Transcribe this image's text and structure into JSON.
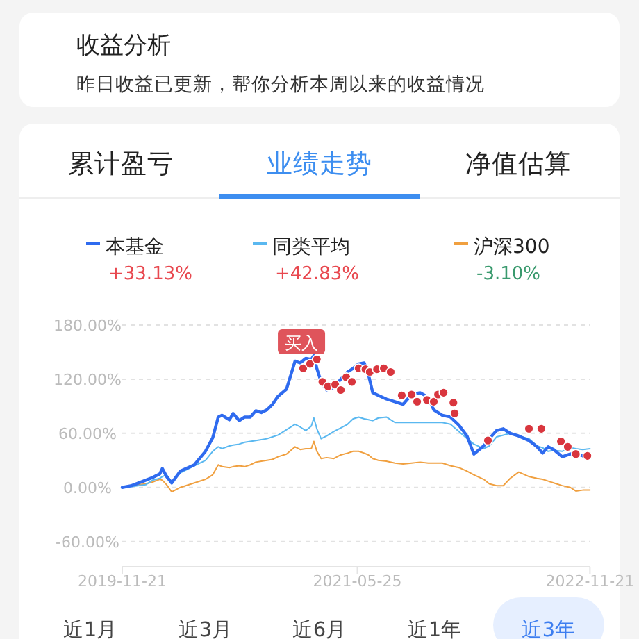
{
  "chart_data": {
    "type": "line",
    "title": "收益分析",
    "subtitle": "昨日收益已更新，帮你分析本周以来的收益情况",
    "annotations": [
      "累计盈亏",
      "业绩走势",
      "净值估算",
      "+33.13%",
      "+42.83%",
      "-3.10%",
      {
        "text": "买入",
        "x": "2021-01-14",
        "y": 160
      },
      "近1月",
      "近3月",
      "近6月",
      "近1年",
      "近3年"
    ],
    "x": [
      "2019-11-21",
      "2019-12-13",
      "2020-01-15",
      "2020-01-31",
      "2020-02-17",
      "2020-02-23",
      "2020-03-04",
      "2020-03-16",
      "2020-04-05",
      "2020-05-08",
      "2020-06-03",
      "2020-06-20",
      "2020-07-03",
      "2020-07-12",
      "2020-07-29",
      "2020-08-07",
      "2020-08-21",
      "2020-09-03",
      "2020-09-16",
      "2020-09-29",
      "2020-10-12",
      "2020-10-25",
      "2020-11-07",
      "2020-11-20",
      "2020-12-10",
      "2020-12-30",
      "2021-01-11",
      "2021-01-24",
      "2021-02-06",
      "2021-02-12",
      "2021-02-19",
      "2021-03-01",
      "2021-03-14",
      "2021-03-31",
      "2021-04-16",
      "2021-05-02",
      "2021-05-15",
      "2021-05-28",
      "2021-06-10",
      "2021-06-20",
      "2021-06-30",
      "2021-07-13",
      "2021-08-01",
      "2021-08-21",
      "2021-09-09",
      "2021-09-29",
      "2021-10-19",
      "2021-11-07",
      "2021-11-20",
      "2021-12-10",
      "2021-12-29",
      "2022-01-18",
      "2022-02-06",
      "2022-02-22",
      "2022-03-17",
      "2022-03-30",
      "2022-04-16",
      "2022-05-02",
      "2022-05-18",
      "2022-06-07",
      "2022-07-01",
      "2022-07-20",
      "2022-08-02",
      "2022-08-15",
      "2022-08-28",
      "2022-09-17",
      "2022-10-06",
      "2022-10-19",
      "2022-11-04",
      "2022-11-21"
    ],
    "series": [
      {
        "name": "本基金",
        "color": "#2f6bef",
        "values": [
          0,
          2,
          8,
          11,
          15,
          21,
          12,
          5,
          18,
          25,
          40,
          55,
          78,
          80,
          75,
          82,
          74,
          78,
          78,
          85,
          83,
          86,
          92,
          101,
          109,
          140,
          138,
          143,
          142,
          146,
          132,
          117,
          108,
          111,
          120,
          128,
          132,
          137,
          138,
          125,
          105,
          102,
          98,
          95,
          92,
          103,
          105,
          100,
          86,
          80,
          78,
          69,
          57,
          37,
          46,
          54,
          63,
          65,
          60,
          57,
          52,
          45,
          38,
          45,
          42,
          34,
          37,
          38,
          35,
          33
        ]
      },
      {
        "name": "同类平均",
        "color": "#5ab8f0",
        "values": [
          0,
          1,
          3,
          8,
          10,
          12,
          14,
          6,
          16,
          24,
          30,
          40,
          45,
          43,
          46,
          47,
          48,
          50,
          51,
          52,
          53,
          54,
          56,
          58,
          64,
          70,
          67,
          63,
          68,
          77,
          65,
          54,
          57,
          62,
          66,
          70,
          76,
          78,
          76,
          75,
          74,
          77,
          78,
          72,
          72,
          72,
          72,
          72,
          72,
          72,
          70,
          62,
          54,
          48,
          43,
          46,
          56,
          58,
          60,
          57,
          54,
          46,
          44,
          40,
          41,
          40,
          44,
          43,
          42,
          43
        ]
      },
      {
        "name": "沪深300",
        "color": "#f0a040",
        "values": [
          0,
          2,
          4,
          6,
          9,
          8,
          3,
          -5,
          0,
          5,
          9,
          14,
          25,
          23,
          22,
          23,
          24,
          23,
          25,
          28,
          29,
          30,
          31,
          34,
          37,
          45,
          42,
          43,
          43,
          51,
          40,
          32,
          33,
          32,
          36,
          38,
          40,
          40,
          38,
          36,
          32,
          30,
          29,
          27,
          26,
          27,
          28,
          27,
          27,
          27,
          24,
          22,
          18,
          14,
          9,
          4,
          2,
          2,
          10,
          17,
          12,
          10,
          9,
          7,
          5,
          2,
          0,
          -4,
          -3,
          -3
        ]
      },
      {
        "type": "scatter",
        "color": "#d9363e",
        "x": [
          "2021-01-18",
          "2021-02-03",
          "2021-02-19",
          "2021-03-04",
          "2021-03-17",
          "2021-04-03",
          "2021-04-16",
          "2021-04-29",
          "2021-05-12",
          "2021-05-28",
          "2021-06-13",
          "2021-06-23",
          "2021-07-10",
          "2021-07-26",
          "2021-08-11",
          "2021-09-06",
          "2021-09-29",
          "2021-10-12",
          "2021-11-04",
          "2021-11-20",
          "2021-11-30",
          "2021-12-13",
          "2022-01-05",
          "2022-01-08",
          "2022-03-27",
          "2022-07-01",
          "2022-07-30",
          "2022-09-14",
          "2022-09-30",
          "2022-10-19",
          "2022-11-15"
        ],
        "values": [
          132,
          137,
          142,
          117,
          112,
          114,
          108,
          122,
          117,
          132,
          131,
          128,
          131,
          132,
          128,
          102,
          103,
          95,
          97,
          95,
          103,
          105,
          94,
          82,
          52,
          65,
          65,
          51,
          45,
          37,
          35
        ]
      }
    ],
    "xlim": [
      "2019-11-21",
      "2022-11-22"
    ],
    "xticks": [
      "2019-11-21",
      "2021-05-25",
      "2022-11-21"
    ],
    "ylim": [
      -88,
      180
    ],
    "yticks": [
      {
        "value": 180,
        "label": "180.00%"
      },
      {
        "value": 120,
        "label": "120.00%"
      },
      {
        "value": 60,
        "label": "60.00%"
      },
      {
        "value": 0,
        "label": "0.00%"
      },
      {
        "value": -60,
        "label": "-60.00%"
      }
    ],
    "grid": "y",
    "legend": "top",
    "line_style": "solid"
  }
}
